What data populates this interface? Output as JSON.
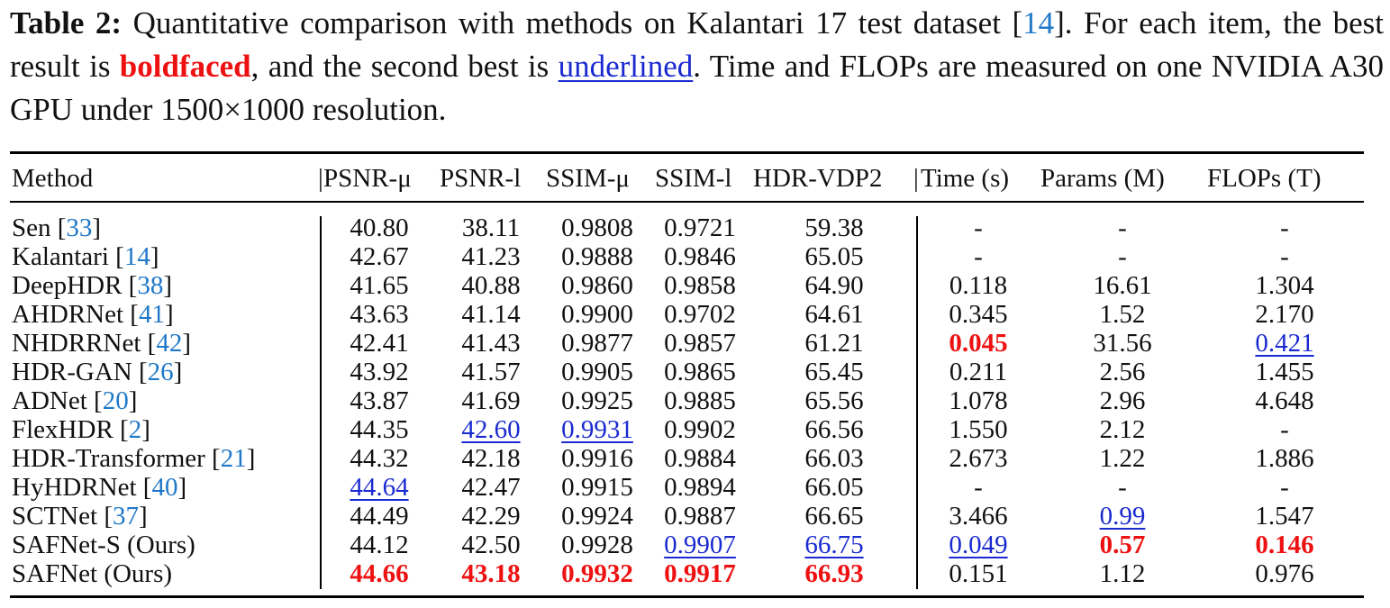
{
  "caption": {
    "label": "Table 2:",
    "text_1": " Quantitative comparison with methods on Kalantari 17 test dataset [",
    "cite": "14",
    "text_2": "]. For each item, the best result is ",
    "bold_word": "boldfaced",
    "text_3": ", and the second best is ",
    "underline_word": "underlined",
    "text_4": ". Time and FLOPs are measured on one NVIDIA A30 GPU under 1500×1000 resolution."
  },
  "columns": [
    "Method",
    "PSNR-μ",
    "PSNR-l",
    "SSIM-μ",
    "SSIM-l",
    "HDR-VDP2",
    "Time (s)",
    "Params (M)",
    "FLOPs (T)"
  ],
  "rows": [
    {
      "name": "Sen",
      "cite": "33",
      "cells": [
        {
          "v": "40.80"
        },
        {
          "v": "38.11"
        },
        {
          "v": "0.9808"
        },
        {
          "v": "0.9721"
        },
        {
          "v": "59.38"
        },
        {
          "v": "-"
        },
        {
          "v": "-"
        },
        {
          "v": "-"
        }
      ]
    },
    {
      "name": "Kalantari",
      "cite": "14",
      "cells": [
        {
          "v": "42.67"
        },
        {
          "v": "41.23"
        },
        {
          "v": "0.9888"
        },
        {
          "v": "0.9846"
        },
        {
          "v": "65.05"
        },
        {
          "v": "-"
        },
        {
          "v": "-"
        },
        {
          "v": "-"
        }
      ]
    },
    {
      "name": "DeepHDR",
      "cite": "38",
      "cells": [
        {
          "v": "41.65"
        },
        {
          "v": "40.88"
        },
        {
          "v": "0.9860"
        },
        {
          "v": "0.9858"
        },
        {
          "v": "64.90"
        },
        {
          "v": "0.118"
        },
        {
          "v": "16.61"
        },
        {
          "v": "1.304"
        }
      ]
    },
    {
      "name": "AHDRNet",
      "cite": "41",
      "cells": [
        {
          "v": "43.63"
        },
        {
          "v": "41.14"
        },
        {
          "v": "0.9900"
        },
        {
          "v": "0.9702"
        },
        {
          "v": "64.61"
        },
        {
          "v": "0.345"
        },
        {
          "v": "1.52"
        },
        {
          "v": "2.170"
        }
      ]
    },
    {
      "name": "NHDRRNet",
      "cite": "42",
      "cells": [
        {
          "v": "42.41"
        },
        {
          "v": "41.43"
        },
        {
          "v": "0.9877"
        },
        {
          "v": "0.9857"
        },
        {
          "v": "61.21"
        },
        {
          "v": "0.045",
          "s": "best"
        },
        {
          "v": "31.56"
        },
        {
          "v": "0.421",
          "s": "second"
        }
      ]
    },
    {
      "name": "HDR-GAN",
      "cite": "26",
      "cells": [
        {
          "v": "43.92"
        },
        {
          "v": "41.57"
        },
        {
          "v": "0.9905"
        },
        {
          "v": "0.9865"
        },
        {
          "v": "65.45"
        },
        {
          "v": "0.211"
        },
        {
          "v": "2.56"
        },
        {
          "v": "1.455"
        }
      ]
    },
    {
      "name": "ADNet",
      "cite": "20",
      "cells": [
        {
          "v": "43.87"
        },
        {
          "v": "41.69"
        },
        {
          "v": "0.9925"
        },
        {
          "v": "0.9885"
        },
        {
          "v": "65.56"
        },
        {
          "v": "1.078"
        },
        {
          "v": "2.96"
        },
        {
          "v": "4.648"
        }
      ]
    },
    {
      "name": "FlexHDR",
      "cite": "2",
      "cells": [
        {
          "v": "44.35"
        },
        {
          "v": "42.60",
          "s": "second"
        },
        {
          "v": "0.9931",
          "s": "second"
        },
        {
          "v": "0.9902"
        },
        {
          "v": "66.56"
        },
        {
          "v": "1.550"
        },
        {
          "v": "2.12"
        },
        {
          "v": "-"
        }
      ]
    },
    {
      "name": "HDR-Transformer",
      "cite": "21",
      "cells": [
        {
          "v": "44.32"
        },
        {
          "v": "42.18"
        },
        {
          "v": "0.9916"
        },
        {
          "v": "0.9884"
        },
        {
          "v": "66.03"
        },
        {
          "v": "2.673"
        },
        {
          "v": "1.22"
        },
        {
          "v": "1.886"
        }
      ]
    },
    {
      "name": "HyHDRNet",
      "cite": "40",
      "cells": [
        {
          "v": "44.64",
          "s": "second"
        },
        {
          "v": "42.47"
        },
        {
          "v": "0.9915"
        },
        {
          "v": "0.9894"
        },
        {
          "v": "66.05"
        },
        {
          "v": "-"
        },
        {
          "v": "-"
        },
        {
          "v": "-"
        }
      ]
    },
    {
      "name": "SCTNet",
      "cite": "37",
      "cells": [
        {
          "v": "44.49"
        },
        {
          "v": "42.29"
        },
        {
          "v": "0.9924"
        },
        {
          "v": "0.9887"
        },
        {
          "v": "66.65"
        },
        {
          "v": "3.466"
        },
        {
          "v": "0.99",
          "s": "second"
        },
        {
          "v": "1.547"
        }
      ]
    },
    {
      "name": "SAFNet-S (Ours)",
      "cite": "",
      "cells": [
        {
          "v": "44.12"
        },
        {
          "v": "42.50"
        },
        {
          "v": "0.9928"
        },
        {
          "v": "0.9907",
          "s": "second"
        },
        {
          "v": "66.75",
          "s": "second"
        },
        {
          "v": "0.049",
          "s": "second"
        },
        {
          "v": "0.57",
          "s": "best"
        },
        {
          "v": "0.146",
          "s": "best"
        }
      ]
    },
    {
      "name": "SAFNet (Ours)",
      "cite": "",
      "cells": [
        {
          "v": "44.66",
          "s": "best"
        },
        {
          "v": "43.18",
          "s": "best"
        },
        {
          "v": "0.9932",
          "s": "best"
        },
        {
          "v": "0.9917",
          "s": "best"
        },
        {
          "v": "66.93",
          "s": "best"
        },
        {
          "v": "0.151"
        },
        {
          "v": "1.12"
        },
        {
          "v": "0.976"
        }
      ]
    }
  ],
  "colors": {
    "best": "#ee1111",
    "second": "#1a2ad0",
    "cite": "#1f78c8"
  }
}
